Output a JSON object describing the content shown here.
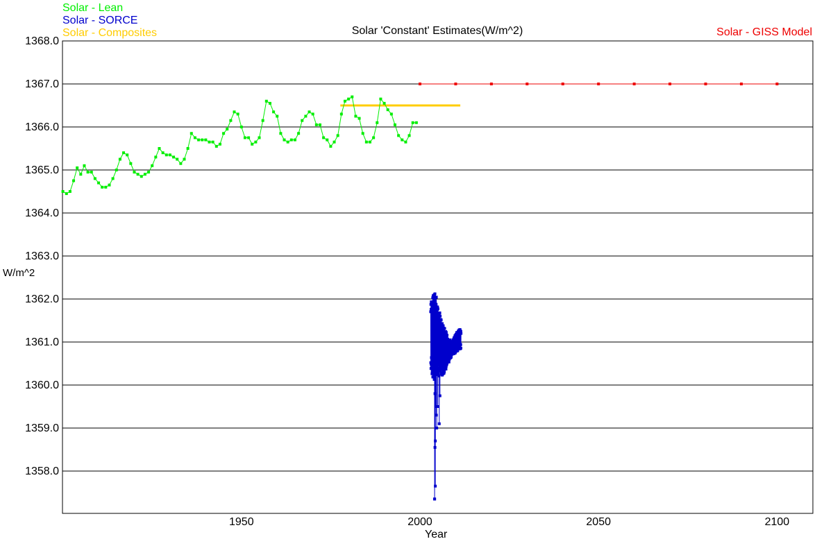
{
  "chart_data": {
    "type": "line",
    "title": "Solar 'Constant' Estimates(W/m^2)",
    "xlabel": "Year",
    "ylabel": "W/m^2",
    "xlim": [
      1900,
      2110
    ],
    "ylim": [
      1357,
      1368
    ],
    "x_ticks": [
      {
        "value": 1950,
        "label": "1950"
      },
      {
        "value": 2000,
        "label": "2000"
      },
      {
        "value": 2050,
        "label": "2050"
      },
      {
        "value": 2100,
        "label": "2100"
      }
    ],
    "y_ticks": [
      {
        "value": 1368,
        "label": "1368.0"
      },
      {
        "value": 1367,
        "label": "1367.0"
      },
      {
        "value": 1366,
        "label": "1366.0"
      },
      {
        "value": 1365,
        "label": "1365.0"
      },
      {
        "value": 1364,
        "label": "1364.0"
      },
      {
        "value": 1363,
        "label": "1363.0"
      },
      {
        "value": 1362,
        "label": "1362.0"
      },
      {
        "value": 1361,
        "label": "1361.0"
      },
      {
        "value": 1360,
        "label": "1360.0"
      },
      {
        "value": 1359,
        "label": "1359.0"
      },
      {
        "value": 1358,
        "label": "1358.0"
      }
    ],
    "grid": "horizontal",
    "series": [
      {
        "name": "Solar - Lean",
        "color": "#00ee00",
        "x": [
          1900,
          1901,
          1902,
          1903,
          1904,
          1905,
          1906,
          1907,
          1908,
          1909,
          1910,
          1911,
          1912,
          1913,
          1914,
          1915,
          1916,
          1917,
          1918,
          1919,
          1920,
          1921,
          1922,
          1923,
          1924,
          1925,
          1926,
          1927,
          1928,
          1929,
          1930,
          1931,
          1932,
          1933,
          1934,
          1935,
          1936,
          1937,
          1938,
          1939,
          1940,
          1941,
          1942,
          1943,
          1944,
          1945,
          1946,
          1947,
          1948,
          1949,
          1950,
          1951,
          1952,
          1953,
          1954,
          1955,
          1956,
          1957,
          1958,
          1959,
          1960,
          1961,
          1962,
          1963,
          1964,
          1965,
          1966,
          1967,
          1968,
          1969,
          1970,
          1971,
          1972,
          1973,
          1974,
          1975,
          1976,
          1977,
          1978,
          1979,
          1980,
          1981,
          1982,
          1983,
          1984,
          1985,
          1986,
          1987,
          1988,
          1989,
          1990,
          1991,
          1992,
          1993,
          1994,
          1995,
          1996,
          1997,
          1998,
          1999
        ],
        "y": [
          1364.5,
          1364.45,
          1364.5,
          1364.75,
          1365.05,
          1364.9,
          1365.1,
          1364.95,
          1364.95,
          1364.8,
          1364.7,
          1364.6,
          1364.6,
          1364.65,
          1364.8,
          1365.0,
          1365.25,
          1365.4,
          1365.35,
          1365.15,
          1364.95,
          1364.9,
          1364.85,
          1364.9,
          1364.95,
          1365.1,
          1365.3,
          1365.5,
          1365.4,
          1365.35,
          1365.35,
          1365.3,
          1365.25,
          1365.15,
          1365.25,
          1365.5,
          1365.85,
          1365.75,
          1365.7,
          1365.7,
          1365.7,
          1365.65,
          1365.65,
          1365.55,
          1365.6,
          1365.85,
          1365.95,
          1366.15,
          1366.35,
          1366.3,
          1366.0,
          1365.75,
          1365.75,
          1365.6,
          1365.65,
          1365.75,
          1366.15,
          1366.6,
          1366.55,
          1366.35,
          1366.25,
          1365.85,
          1365.7,
          1365.65,
          1365.7,
          1365.7,
          1365.85,
          1366.15,
          1366.25,
          1366.35,
          1366.3,
          1366.05,
          1366.05,
          1365.75,
          1365.7,
          1365.55,
          1365.65,
          1365.8,
          1366.3,
          1366.6,
          1366.65,
          1366.7,
          1366.25,
          1366.2,
          1365.85,
          1365.65,
          1365.65,
          1365.75,
          1366.1,
          1366.65,
          1366.55,
          1366.4,
          1366.3,
          1366.05,
          1365.8,
          1365.7,
          1365.65,
          1365.8,
          1366.1,
          1366.1
        ]
      },
      {
        "name": "Solar - SORCE",
        "color": "#0000cc",
        "x_range": [
          2003.0,
          2011.5
        ],
        "spike": {
          "x": 2004.1,
          "min": 1357.35
        },
        "envelope": [
          {
            "x": 2003.0,
            "low": 1360.3,
            "high": 1361.9
          },
          {
            "x": 2003.5,
            "low": 1360.2,
            "high": 1362.1
          },
          {
            "x": 2004.0,
            "low": 1360.0,
            "high": 1362.2
          },
          {
            "x": 2004.5,
            "low": 1360.2,
            "high": 1362.1
          },
          {
            "x": 2005.0,
            "low": 1360.2,
            "high": 1361.9
          },
          {
            "x": 2006.0,
            "low": 1360.2,
            "high": 1361.5
          },
          {
            "x": 2007.0,
            "low": 1360.3,
            "high": 1361.3
          },
          {
            "x": 2008.0,
            "low": 1360.5,
            "high": 1361.1
          },
          {
            "x": 2009.0,
            "low": 1360.7,
            "high": 1361.0
          },
          {
            "x": 2010.0,
            "low": 1360.75,
            "high": 1361.2
          },
          {
            "x": 2011.0,
            "low": 1360.8,
            "high": 1361.3
          },
          {
            "x": 2011.5,
            "low": 1360.85,
            "high": 1361.3
          }
        ],
        "low_outliers": [
          {
            "x": 2004.2,
            "y": 1359.8
          },
          {
            "x": 2004.4,
            "y": 1359.5
          },
          {
            "x": 2004.6,
            "y": 1359.3
          },
          {
            "x": 2004.3,
            "y": 1358.7
          },
          {
            "x": 2004.7,
            "y": 1359.0
          },
          {
            "x": 2005.0,
            "y": 1359.5
          },
          {
            "x": 2005.4,
            "y": 1359.1
          },
          {
            "x": 2005.6,
            "y": 1359.75
          },
          {
            "x": 2004.2,
            "y": 1358.55
          },
          {
            "x": 2004.3,
            "y": 1357.65
          }
        ]
      },
      {
        "name": "Solar - Composites",
        "color": "#ffcc00",
        "x_range": [
          1978,
          2011
        ],
        "y": 1366.5
      },
      {
        "name": "Solar - GISS Model",
        "color": "#ee0000",
        "x": [
          2000,
          2010,
          2020,
          2030,
          2040,
          2050,
          2060,
          2070,
          2080,
          2090,
          2100
        ],
        "y": [
          1367,
          1367,
          1367,
          1367,
          1367,
          1367,
          1367,
          1367,
          1367,
          1367,
          1367
        ]
      }
    ]
  }
}
